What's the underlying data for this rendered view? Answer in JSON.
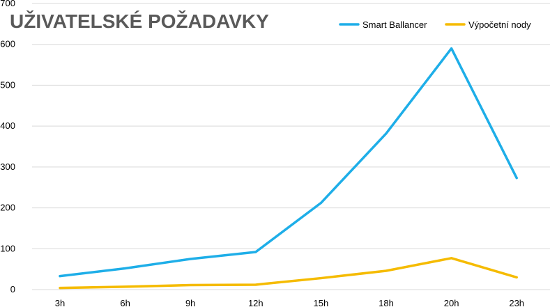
{
  "chart_data": {
    "type": "line",
    "title": "UŽIVATELSKÉ POŽADAVKY",
    "xlabel": "",
    "ylabel": "",
    "categories": [
      "3h",
      "6h",
      "9h",
      "12h",
      "15h",
      "18h",
      "20h",
      "23h"
    ],
    "ylim": [
      0,
      700
    ],
    "yticks": [
      "0",
      "100",
      "200",
      "300",
      "400",
      "500",
      "600",
      "700"
    ],
    "grid": true,
    "legend_position": "top-right",
    "series": [
      {
        "name": "Smart Ballancer",
        "color": "#1eaee8",
        "values": [
          33,
          52,
          75,
          92,
          212,
          382,
          590,
          273
        ]
      },
      {
        "name": "Výpočetní nody",
        "color": "#f5bb00",
        "values": [
          4,
          7,
          11,
          12,
          28,
          46,
          77,
          30
        ]
      }
    ]
  }
}
